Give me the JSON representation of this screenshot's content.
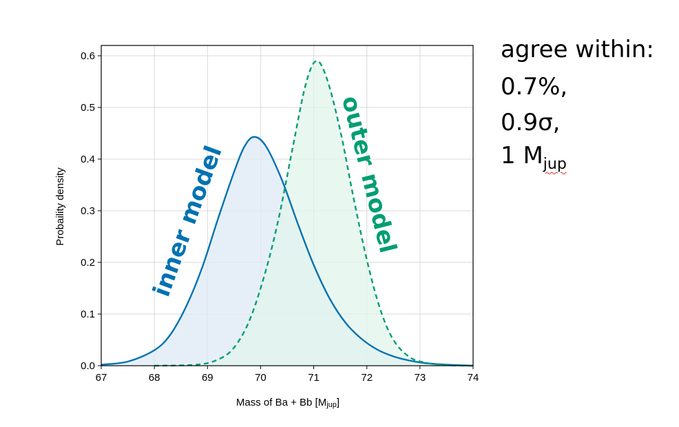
{
  "chart_data": {
    "type": "area",
    "title": "",
    "xlabel": "Mass of Ba + Bb [M",
    "xlabel_sub": "jup",
    "xlabel_end": "]",
    "ylabel": "Probaility density",
    "xlim": [
      67,
      74
    ],
    "ylim": [
      0,
      0.62
    ],
    "xticks": [
      "67",
      "68",
      "69",
      "70",
      "71",
      "72",
      "73",
      "74"
    ],
    "yticks": [
      "0.0",
      "0.1",
      "0.2",
      "0.3",
      "0.4",
      "0.5",
      "0.6"
    ],
    "grid": true,
    "series": [
      {
        "name": "inner model",
        "style": "solid",
        "color": "#0072b2",
        "fill": "#dde9f4",
        "peak_x": 69.88,
        "peak_y": 0.443,
        "x": [
          67,
          67.5,
          68,
          68.3,
          68.6,
          68.9,
          69.2,
          69.5,
          69.7,
          69.88,
          70.1,
          70.4,
          70.7,
          71.0,
          71.3,
          71.6,
          71.9,
          72.2,
          72.5,
          72.8,
          73.1,
          73.5,
          74
        ],
        "y": [
          0.002,
          0.008,
          0.03,
          0.06,
          0.115,
          0.19,
          0.285,
          0.375,
          0.425,
          0.443,
          0.425,
          0.36,
          0.275,
          0.195,
          0.13,
          0.083,
          0.052,
          0.031,
          0.018,
          0.01,
          0.005,
          0.002,
          0.0
        ]
      },
      {
        "name": "outer model",
        "style": "dashed",
        "color": "#009e73",
        "fill": "#e2f4ec",
        "peak_x": 71.05,
        "peak_y": 0.59,
        "x": [
          68,
          68.8,
          69.2,
          69.5,
          69.8,
          70.1,
          70.35,
          70.6,
          70.85,
          71.05,
          71.25,
          71.5,
          71.75,
          72.0,
          72.25,
          72.5,
          72.8,
          73.1,
          73.5,
          74
        ],
        "y": [
          0.0,
          0.002,
          0.012,
          0.035,
          0.09,
          0.185,
          0.29,
          0.42,
          0.545,
          0.59,
          0.555,
          0.455,
          0.325,
          0.205,
          0.11,
          0.05,
          0.017,
          0.006,
          0.001,
          0.0
        ]
      }
    ]
  },
  "annotations": {
    "line1": "agree within:",
    "line2": "0.7%,",
    "line3": "0.9σ,",
    "line4_main": "1 M",
    "line4_sub": "jup"
  }
}
